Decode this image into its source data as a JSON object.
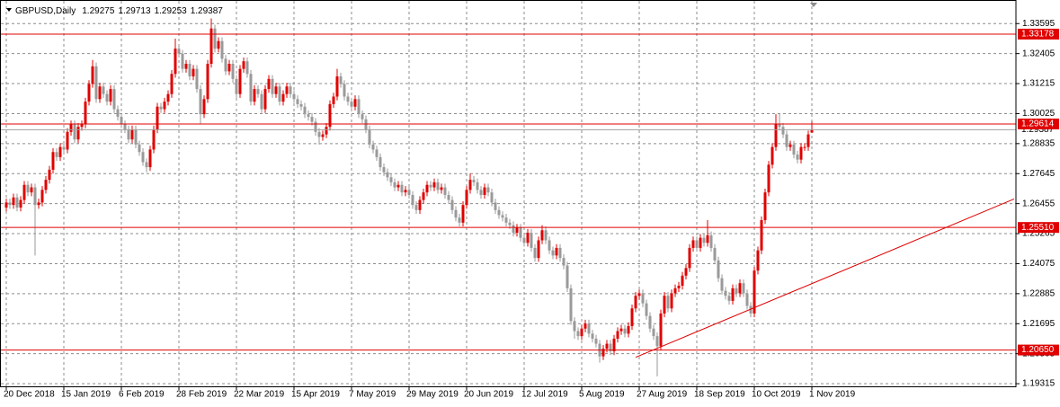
{
  "chart_data": {
    "type": "candlestick",
    "title": "GBPUSD,Daily",
    "up_color": "#e00000",
    "down_color": "#9a9a9a",
    "grid": true,
    "ylim": [
      1.1921,
      1.3453
    ],
    "yticks": [
      1.33595,
      1.32405,
      1.31215,
      1.30025,
      1.28835,
      1.27645,
      1.26455,
      1.25265,
      1.24075,
      1.22885,
      1.21695,
      1.20505,
      1.19315
    ],
    "xticks": [
      {
        "value": 0,
        "label": "20 Dec 2018"
      },
      {
        "value": 16,
        "label": "15 Jan 2019"
      },
      {
        "value": 32,
        "label": "6 Feb 2019"
      },
      {
        "value": 48,
        "label": "28 Feb 2019"
      },
      {
        "value": 64,
        "label": "22 Mar 2019"
      },
      {
        "value": 80,
        "label": "15 Apr 2019"
      },
      {
        "value": 96,
        "label": "7 May 2019"
      },
      {
        "value": 112,
        "label": "29 May 2019"
      },
      {
        "value": 128,
        "label": "20 Jun 2019"
      },
      {
        "value": 144,
        "label": "12 Jul 2019"
      },
      {
        "value": 160,
        "label": "5 Aug 2019"
      },
      {
        "value": 176,
        "label": "27 Aug 2019"
      },
      {
        "value": 192,
        "label": "18 Sep 2019"
      },
      {
        "value": 208,
        "label": "10 Oct 2019"
      },
      {
        "value": 224,
        "label": "1 Nov 2019"
      }
    ],
    "levels": {
      "color": "#e00000",
      "values": [
        1.33178,
        1.29614,
        {
          "value": 1.2551,
          "label": "1.25510"
        },
        {
          "value": 1.2065,
          "label": "1.20650"
        }
      ]
    },
    "trendline": {
      "color": "#e00000",
      "x": [
        175,
        280.25
      ],
      "y": [
        1.2036,
        1.2664
      ]
    },
    "open": [
      1.263,
      1.265,
      1.264,
      1.267,
      1.263,
      1.266,
      1.272,
      1.269,
      1.271,
      1.264,
      1.265,
      1.27,
      1.274,
      1.278,
      1.285,
      1.283,
      1.287,
      1.286,
      1.293,
      1.296,
      1.29,
      1.295,
      1.296,
      1.305,
      1.312,
      1.319,
      1.306,
      1.311,
      1.308,
      1.305,
      1.31,
      1.302,
      1.299,
      1.296,
      1.294,
      1.29,
      1.294,
      1.288,
      1.285,
      1.281,
      1.279,
      1.286,
      1.294,
      1.303,
      1.302,
      1.305,
      1.308,
      1.316,
      1.326,
      1.324,
      1.318,
      1.32,
      1.315,
      1.318,
      1.31,
      1.3,
      1.306,
      1.32,
      1.334,
      1.326,
      1.329,
      1.322,
      1.317,
      1.32,
      1.314,
      1.308,
      1.318,
      1.321,
      1.316,
      1.305,
      1.31,
      1.308,
      1.302,
      1.31,
      1.314,
      1.308,
      1.311,
      1.305,
      1.308,
      1.311,
      1.308,
      1.306,
      1.304,
      1.303,
      1.3,
      1.299,
      1.297,
      1.293,
      1.291,
      1.292,
      1.295,
      1.304,
      1.307,
      1.315,
      1.312,
      1.307,
      1.305,
      1.303,
      1.306,
      1.3,
      1.298,
      1.294,
      1.288,
      1.286,
      1.283,
      1.279,
      1.277,
      1.275,
      1.273,
      1.271,
      1.272,
      1.269,
      1.27,
      1.268,
      1.264,
      1.262,
      1.266,
      1.269,
      1.272,
      1.271,
      1.273,
      1.27,
      1.271,
      1.268,
      1.266,
      1.262,
      1.259,
      1.257,
      1.264,
      1.27,
      1.274,
      1.273,
      1.27,
      1.268,
      1.271,
      1.269,
      1.265,
      1.262,
      1.26,
      1.259,
      1.257,
      1.256,
      1.253,
      1.255,
      1.251,
      1.249,
      1.253,
      1.247,
      1.243,
      1.25,
      1.254,
      1.25,
      1.246,
      1.244,
      1.247,
      1.243,
      1.24,
      1.231,
      1.218,
      1.214,
      1.212,
      1.215,
      1.217,
      1.213,
      1.211,
      1.209,
      1.204,
      1.207,
      1.209,
      1.206,
      1.211,
      1.214,
      1.215,
      1.213,
      1.216,
      1.223,
      1.228,
      1.229,
      1.225,
      1.22,
      1.215,
      1.212,
      1.208,
      1.221,
      1.228,
      1.223,
      1.229,
      1.231,
      1.232,
      1.236,
      1.239,
      1.247,
      1.25,
      1.247,
      1.251,
      1.249,
      1.252,
      1.247,
      1.242,
      1.235,
      1.23,
      1.228,
      1.226,
      1.231,
      1.229,
      1.233,
      1.229,
      1.224,
      1.221,
      1.238,
      1.246,
      1.258,
      1.269,
      1.28,
      1.287,
      1.296,
      1.295,
      1.292,
      1.287,
      1.288,
      1.284,
      1.282,
      1.287,
      1.287,
      1.29275
    ],
    "high": [
      1.2665,
      1.2665,
      1.2685,
      1.2685,
      1.2675,
      1.2735,
      1.2735,
      1.2725,
      1.2725,
      1.2665,
      1.2715,
      1.2755,
      1.2795,
      1.2865,
      1.2865,
      1.2885,
      1.2885,
      1.2945,
      1.2975,
      1.2975,
      1.2965,
      1.2975,
      1.3065,
      1.3135,
      1.3215,
      1.3205,
      1.3125,
      1.3125,
      1.3095,
      1.3115,
      1.3115,
      1.3035,
      1.3005,
      1.2975,
      1.2955,
      1.2955,
      1.2955,
      1.2895,
      1.2865,
      1.2825,
      1.2875,
      1.2955,
      1.3045,
      1.3045,
      1.3065,
      1.3095,
      1.3175,
      1.33,
      1.3275,
      1.3255,
      1.3215,
      1.3215,
      1.3195,
      1.3195,
      1.3115,
      1.3075,
      1.3215,
      1.338,
      1.3355,
      1.3305,
      1.3305,
      1.3235,
      1.3215,
      1.3215,
      1.3155,
      1.3195,
      1.3225,
      1.3225,
      1.3175,
      1.3115,
      1.3115,
      1.3095,
      1.3115,
      1.3155,
      1.3155,
      1.3125,
      1.3125,
      1.3095,
      1.3125,
      1.3125,
      1.3095,
      1.3075,
      1.3055,
      1.3045,
      1.3015,
      1.3005,
      1.2985,
      1.2945,
      1.2935,
      1.2965,
      1.3055,
      1.3085,
      1.318,
      1.3165,
      1.3135,
      1.3085,
      1.3065,
      1.3075,
      1.3075,
      1.3015,
      1.2995,
      1.2955,
      1.2895,
      1.2875,
      1.2845,
      1.2805,
      1.2785,
      1.2765,
      1.2745,
      1.2735,
      1.2735,
      1.2715,
      1.2715,
      1.2695,
      1.2655,
      1.2675,
      1.2705,
      1.2735,
      1.2735,
      1.2745,
      1.2745,
      1.2725,
      1.2725,
      1.2695,
      1.2675,
      1.2635,
      1.2605,
      1.2655,
      1.2715,
      1.2765,
      1.2755,
      1.2745,
      1.2715,
      1.2725,
      1.2725,
      1.2705,
      1.2665,
      1.2635,
      1.2615,
      1.2605,
      1.2585,
      1.2575,
      1.2565,
      1.2565,
      1.2525,
      1.2545,
      1.2545,
      1.2485,
      1.2515,
      1.256,
      1.2555,
      1.2515,
      1.2475,
      1.2485,
      1.2485,
      1.2445,
      1.2415,
      1.2325,
      1.2195,
      1.2155,
      1.2165,
      1.2185,
      1.2185,
      1.2145,
      1.2125,
      1.2105,
      1.2085,
      1.2105,
      1.2105,
      1.2125,
      1.2155,
      1.2165,
      1.2165,
      1.2175,
      1.2245,
      1.2295,
      1.2305,
      1.2305,
      1.2265,
      1.2215,
      1.2165,
      1.2135,
      1.2225,
      1.2295,
      1.2295,
      1.2305,
      1.2325,
      1.2335,
      1.2375,
      1.2405,
      1.2485,
      1.2515,
      1.2515,
      1.2525,
      1.2525,
      1.258,
      1.2535,
      1.2485,
      1.2435,
      1.2365,
      1.2315,
      1.2295,
      1.2325,
      1.2325,
      1.2345,
      1.2345,
      1.2305,
      1.2255,
      1.2395,
      1.2475,
      1.2595,
      1.2705,
      1.2815,
      1.2885,
      1.3,
      1.3005,
      1.2965,
      1.2935,
      1.2895,
      1.2895,
      1.2855,
      1.2885,
      1.2885,
      1.2935,
      1.29713
    ],
    "low": [
      1.2615,
      1.2625,
      1.2625,
      1.2615,
      1.2615,
      1.2645,
      1.2675,
      1.2675,
      1.244,
      1.2625,
      1.2635,
      1.2685,
      1.2725,
      1.2765,
      1.2815,
      1.2815,
      1.2845,
      1.2845,
      1.2915,
      1.2885,
      1.2885,
      1.2935,
      1.2945,
      1.3035,
      1.3105,
      1.3045,
      1.3045,
      1.3065,
      1.3035,
      1.3035,
      1.3005,
      1.2975,
      1.2945,
      1.2925,
      1.2885,
      1.2885,
      1.2865,
      1.2835,
      1.2795,
      1.277,
      1.2775,
      1.2845,
      1.2925,
      1.3005,
      1.3005,
      1.3035,
      1.3065,
      1.3145,
      1.3225,
      1.3165,
      1.3165,
      1.3135,
      1.3135,
      1.3085,
      1.296,
      1.2985,
      1.3045,
      1.3185,
      1.3245,
      1.3245,
      1.3205,
      1.3155,
      1.3155,
      1.3125,
      1.3065,
      1.3065,
      1.3165,
      1.3145,
      1.3035,
      1.3035,
      1.3065,
      1.3005,
      1.3005,
      1.3085,
      1.3065,
      1.3065,
      1.3035,
      1.3035,
      1.3065,
      1.3065,
      1.3045,
      1.3025,
      1.3015,
      1.2985,
      1.2975,
      1.2955,
      1.2915,
      1.288,
      1.2895,
      1.2905,
      1.2935,
      1.3025,
      1.3055,
      1.3105,
      1.3055,
      1.3035,
      1.3015,
      1.3015,
      1.2985,
      1.2965,
      1.2925,
      1.2865,
      1.2845,
      1.2815,
      1.2775,
      1.2755,
      1.2735,
      1.2715,
      1.2695,
      1.2695,
      1.2675,
      1.2675,
      1.2665,
      1.2625,
      1.2605,
      1.2605,
      1.2645,
      1.2675,
      1.2695,
      1.2695,
      1.2685,
      1.2685,
      1.2665,
      1.2645,
      1.2605,
      1.2575,
      1.2555,
      1.2555,
      1.2625,
      1.2685,
      1.2715,
      1.2685,
      1.2665,
      1.2665,
      1.2675,
      1.2635,
      1.2605,
      1.2585,
      1.2575,
      1.2555,
      1.2545,
      1.2515,
      1.2515,
      1.2495,
      1.2475,
      1.2475,
      1.2455,
      1.2415,
      1.2415,
      1.2485,
      1.2485,
      1.2445,
      1.2425,
      1.2425,
      1.2415,
      1.2385,
      1.2295,
      1.2165,
      1.211,
      1.2105,
      1.2105,
      1.2135,
      1.2115,
      1.2095,
      1.2075,
      1.2015,
      1.2025,
      1.2055,
      1.2045,
      1.2045,
      1.2095,
      1.2125,
      1.2115,
      1.2115,
      1.2145,
      1.2215,
      1.2265,
      1.2235,
      1.2185,
      1.2135,
      1.2105,
      1.196,
      1.2065,
      1.2195,
      1.2215,
      1.2215,
      1.2275,
      1.2295,
      1.2305,
      1.2345,
      1.2375,
      1.2455,
      1.2455,
      1.2455,
      1.2475,
      1.2475,
      1.2455,
      1.2405,
      1.2335,
      1.2285,
      1.2265,
      1.2245,
      1.2245,
      1.2275,
      1.2275,
      1.2275,
      1.2225,
      1.2195,
      1.2195,
      1.2365,
      1.2445,
      1.2565,
      1.2675,
      1.2785,
      1.2855,
      1.2935,
      1.2905,
      1.2855,
      1.2855,
      1.2825,
      1.2805,
      1.2805,
      1.2855,
      1.2855,
      1.29253
    ],
    "close": [
      1.265,
      1.264,
      1.267,
      1.263,
      1.266,
      1.272,
      1.269,
      1.271,
      1.264,
      1.265,
      1.27,
      1.274,
      1.278,
      1.285,
      1.283,
      1.287,
      1.286,
      1.293,
      1.296,
      1.29,
      1.295,
      1.296,
      1.305,
      1.312,
      1.319,
      1.306,
      1.311,
      1.308,
      1.305,
      1.31,
      1.302,
      1.299,
      1.296,
      1.294,
      1.29,
      1.294,
      1.288,
      1.285,
      1.281,
      1.279,
      1.286,
      1.294,
      1.303,
      1.302,
      1.305,
      1.308,
      1.316,
      1.326,
      1.324,
      1.318,
      1.32,
      1.315,
      1.318,
      1.31,
      1.3,
      1.306,
      1.32,
      1.334,
      1.326,
      1.329,
      1.322,
      1.317,
      1.32,
      1.314,
      1.308,
      1.318,
      1.321,
      1.316,
      1.305,
      1.31,
      1.308,
      1.302,
      1.31,
      1.314,
      1.308,
      1.311,
      1.305,
      1.308,
      1.311,
      1.308,
      1.306,
      1.304,
      1.303,
      1.3,
      1.299,
      1.297,
      1.293,
      1.291,
      1.292,
      1.295,
      1.304,
      1.307,
      1.315,
      1.312,
      1.307,
      1.305,
      1.303,
      1.306,
      1.3,
      1.298,
      1.294,
      1.288,
      1.286,
      1.283,
      1.279,
      1.277,
      1.275,
      1.273,
      1.271,
      1.272,
      1.269,
      1.27,
      1.268,
      1.264,
      1.262,
      1.266,
      1.269,
      1.272,
      1.271,
      1.273,
      1.27,
      1.271,
      1.268,
      1.266,
      1.262,
      1.259,
      1.257,
      1.264,
      1.27,
      1.274,
      1.273,
      1.27,
      1.268,
      1.271,
      1.269,
      1.265,
      1.262,
      1.26,
      1.259,
      1.257,
      1.256,
      1.253,
      1.255,
      1.251,
      1.249,
      1.253,
      1.247,
      1.243,
      1.25,
      1.254,
      1.25,
      1.246,
      1.244,
      1.247,
      1.243,
      1.24,
      1.231,
      1.218,
      1.214,
      1.212,
      1.215,
      1.217,
      1.213,
      1.211,
      1.209,
      1.204,
      1.207,
      1.209,
      1.206,
      1.211,
      1.214,
      1.215,
      1.213,
      1.216,
      1.223,
      1.228,
      1.229,
      1.225,
      1.22,
      1.215,
      1.212,
      1.208,
      1.221,
      1.228,
      1.223,
      1.229,
      1.231,
      1.232,
      1.236,
      1.239,
      1.247,
      1.25,
      1.247,
      1.251,
      1.249,
      1.252,
      1.247,
      1.242,
      1.235,
      1.23,
      1.228,
      1.226,
      1.231,
      1.229,
      1.233,
      1.229,
      1.224,
      1.221,
      1.238,
      1.246,
      1.258,
      1.269,
      1.28,
      1.287,
      1.296,
      1.295,
      1.292,
      1.287,
      1.288,
      1.284,
      1.282,
      1.287,
      1.287,
      1.292,
      1.29387
    ]
  }
}
